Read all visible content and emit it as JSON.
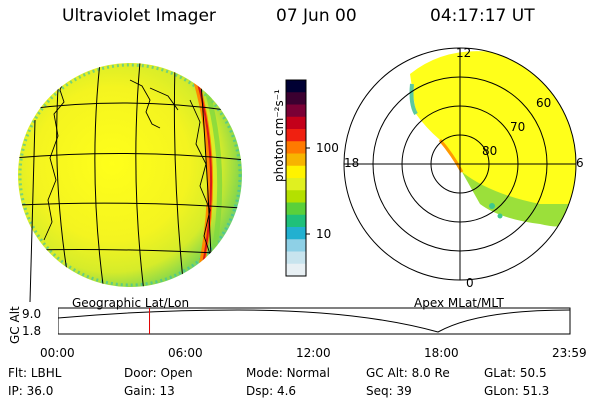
{
  "header": {
    "title": "Ultraviolet Imager",
    "date": "07 Jun 00",
    "time": "04:17:17 UT"
  },
  "left_panel": {
    "caption": "Geographic Lat/Lon"
  },
  "right_panel": {
    "caption": "Apex MLat/MLT",
    "mlt_labels": [
      "12",
      "18",
      "6",
      "0"
    ],
    "lat_labels": [
      "60",
      "70",
      "80"
    ]
  },
  "colorbar": {
    "unit_label": "photon cm⁻²s⁻¹",
    "tick_labels": [
      "100",
      "10"
    ],
    "colors": [
      "#000033",
      "#3b0030",
      "#7a0035",
      "#c4001a",
      "#f02010",
      "#ff7a00",
      "#f7b400",
      "#fff300",
      "#e0f020",
      "#b4e000",
      "#5ad03a",
      "#1fc07a",
      "#22b0d0",
      "#8ed0e6",
      "#c8e4ee",
      "#e8f0f4"
    ]
  },
  "timeline": {
    "axis_label": "GC Alt",
    "y_ticks": [
      "9.0",
      "1.8"
    ],
    "x_ticks": [
      "00:00",
      "06:00",
      "12:00",
      "18:00",
      "23:59"
    ],
    "marker_hour": 4.29
  },
  "info": {
    "row1": [
      {
        "label": "Flt:",
        "value": "LBHL"
      },
      {
        "label": "Door:",
        "value": "Open"
      },
      {
        "label": "Mode:",
        "value": "Normal"
      },
      {
        "label": "GC Alt:",
        "value": "8.0 Re"
      },
      {
        "label": "GLat:",
        "value": "50.5"
      }
    ],
    "row2": [
      {
        "label": "IP:",
        "value": "36.0"
      },
      {
        "label": "Gain:",
        "value": "13"
      },
      {
        "label": "Dsp:",
        "value": "4.6"
      },
      {
        "label": "Seq:",
        "value": "39"
      },
      {
        "label": "GLon:",
        "value": "51.3"
      }
    ]
  }
}
